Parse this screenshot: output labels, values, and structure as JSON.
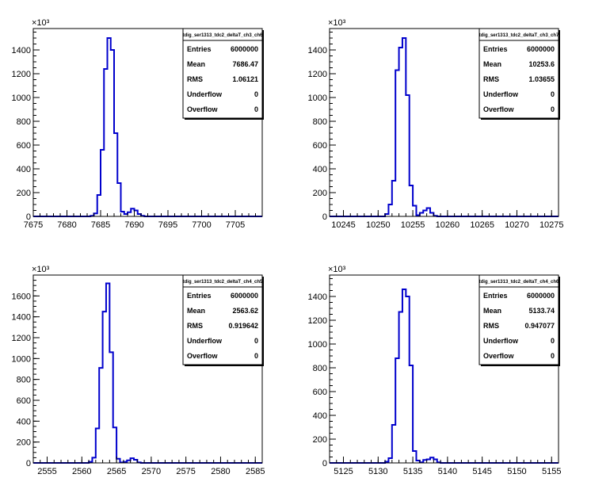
{
  "chart_data": [
    {
      "type": "histogram",
      "stats_title": "tdig_ser1313_tdc2_deltaT_ch3_ch6",
      "stats": [
        {
          "label": "Entries",
          "value": "6000000"
        },
        {
          "label": "Mean",
          "value": "7686.47"
        },
        {
          "label": "RMS",
          "value": "1.06121"
        },
        {
          "label": "Underflow",
          "value": "0"
        },
        {
          "label": "Overflow",
          "value": "0"
        }
      ],
      "xlim": [
        7675,
        7709
      ],
      "ylim": [
        0,
        1580
      ],
      "x_ticks": [
        7675,
        7680,
        7685,
        7690,
        7695,
        7700,
        7705
      ],
      "x_tick_labels": [
        "7675",
        "7680",
        "7685",
        "7690",
        "7695",
        "7700",
        "7705"
      ],
      "y_ticks": [
        0,
        200,
        400,
        600,
        800,
        1000,
        1200,
        1400
      ],
      "y_tick_labels": [
        "0",
        "200",
        "400",
        "600",
        "800",
        "1000",
        "1200",
        "1400"
      ],
      "y_exponent": "×10³",
      "bin_width": 0.5,
      "bins_x": [
        7683.5,
        7684,
        7684.5,
        7685,
        7685.5,
        7686,
        7686.5,
        7687,
        7687.5,
        7688,
        7688.5,
        7689,
        7689.5,
        7690,
        7690.5,
        7691
      ],
      "bins_y": [
        5,
        25,
        180,
        560,
        1240,
        1500,
        1400,
        700,
        280,
        40,
        20,
        35,
        65,
        50,
        20,
        5
      ],
      "color": "#0000cc"
    },
    {
      "type": "histogram",
      "stats_title": "tdig_ser1313_tdc2_deltaT_ch3_ch7",
      "stats": [
        {
          "label": "Entries",
          "value": "6000000"
        },
        {
          "label": "Mean",
          "value": "10253.6"
        },
        {
          "label": "RMS",
          "value": "1.03655"
        },
        {
          "label": "Underflow",
          "value": "0"
        },
        {
          "label": "Overflow",
          "value": "0"
        }
      ],
      "xlim": [
        10243,
        10276
      ],
      "ylim": [
        0,
        1580
      ],
      "x_ticks": [
        10245,
        10250,
        10255,
        10260,
        10265,
        10270,
        10275
      ],
      "x_tick_labels": [
        "10245",
        "10250",
        "10255",
        "10260",
        "10265",
        "10270",
        "10275"
      ],
      "y_ticks": [
        0,
        200,
        400,
        600,
        800,
        1000,
        1200,
        1400
      ],
      "y_tick_labels": [
        "0",
        "200",
        "400",
        "600",
        "800",
        "1000",
        "1200",
        "1400"
      ],
      "y_exponent": "×10³",
      "bin_width": 0.5,
      "bins_x": [
        10251,
        10251.5,
        10252,
        10252.5,
        10253,
        10253.5,
        10254,
        10254.5,
        10255,
        10255.5,
        10256,
        10256.5,
        10257,
        10257.5,
        10258
      ],
      "bins_y": [
        20,
        100,
        300,
        1230,
        1420,
        1500,
        1020,
        260,
        90,
        10,
        30,
        50,
        70,
        30,
        5
      ],
      "color": "#0000cc"
    },
    {
      "type": "histogram",
      "stats_title": "tdig_ser1313_tdc2_deltaT_ch4_ch5",
      "stats": [
        {
          "label": "Entries",
          "value": "6000000"
        },
        {
          "label": "Mean",
          "value": "2563.62"
        },
        {
          "label": "RMS",
          "value": "0.919642"
        },
        {
          "label": "Underflow",
          "value": "0"
        },
        {
          "label": "Overflow",
          "value": "0"
        }
      ],
      "xlim": [
        2553,
        2586
      ],
      "ylim": [
        0,
        1800
      ],
      "x_ticks": [
        2555,
        2560,
        2565,
        2570,
        2575,
        2580,
        2585
      ],
      "x_tick_labels": [
        "2555",
        "2560",
        "2565",
        "2570",
        "2575",
        "2580",
        "2585"
      ],
      "y_ticks": [
        0,
        200,
        400,
        600,
        800,
        1000,
        1200,
        1400,
        1600
      ],
      "y_tick_labels": [
        "0",
        "200",
        "400",
        "600",
        "800",
        "1000",
        "1200",
        "1400",
        "1600"
      ],
      "y_exponent": "×10³",
      "bin_width": 0.5,
      "bins_x": [
        2561,
        2561.5,
        2562,
        2562.5,
        2563,
        2563.5,
        2564,
        2564.5,
        2565,
        2565.5,
        2566,
        2566.5,
        2567,
        2567.5,
        2568
      ],
      "bins_y": [
        10,
        50,
        330,
        910,
        1450,
        1720,
        1060,
        340,
        40,
        5,
        10,
        25,
        45,
        30,
        5
      ],
      "color": "#0000cc"
    },
    {
      "type": "histogram",
      "stats_title": "tdig_ser1313_tdc2_deltaT_ch4_ch6",
      "stats": [
        {
          "label": "Entries",
          "value": "6000000"
        },
        {
          "label": "Mean",
          "value": "5133.74"
        },
        {
          "label": "RMS",
          "value": "0.947077"
        },
        {
          "label": "Underflow",
          "value": "0"
        },
        {
          "label": "Overflow",
          "value": "0"
        }
      ],
      "xlim": [
        5123,
        5156
      ],
      "ylim": [
        0,
        1580
      ],
      "x_ticks": [
        5125,
        5130,
        5135,
        5140,
        5145,
        5150,
        5155
      ],
      "x_tick_labels": [
        "5125",
        "5130",
        "5135",
        "5140",
        "5145",
        "5150",
        "5155"
      ],
      "y_ticks": [
        0,
        200,
        400,
        600,
        800,
        1000,
        1200,
        1400
      ],
      "y_tick_labels": [
        "0",
        "200",
        "400",
        "600",
        "800",
        "1000",
        "1200",
        "1400"
      ],
      "y_exponent": "×10³",
      "bin_width": 0.5,
      "bins_x": [
        5131,
        5131.5,
        5132,
        5132.5,
        5133,
        5133.5,
        5134,
        5134.5,
        5135,
        5135.5,
        5136,
        5136.5,
        5137,
        5137.5,
        5138,
        5138.5
      ],
      "bins_y": [
        10,
        40,
        320,
        880,
        1270,
        1460,
        1400,
        820,
        100,
        20,
        5,
        25,
        30,
        45,
        30,
        5
      ],
      "color": "#0000cc"
    }
  ]
}
